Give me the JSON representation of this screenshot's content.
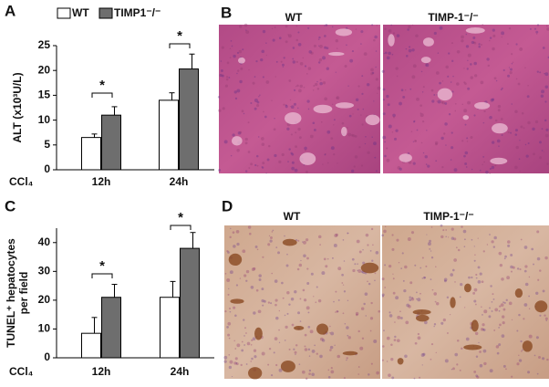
{
  "panels": {
    "a": "A",
    "b": "B",
    "c": "C",
    "d": "D"
  },
  "images": {
    "b_left": "WT",
    "b_right": "TIMP-1⁻/⁻",
    "d_left": "WT",
    "d_right": "TIMP-1⁻/⁻"
  },
  "chart_data": [
    {
      "type": "bar",
      "ylabel": [
        "ALT (x10³U/L)"
      ],
      "xlabel": "CCl₄",
      "categories": [
        "12h",
        "24h"
      ],
      "series": [
        {
          "name": "WT",
          "color": "#ffffff",
          "values": [
            6.5,
            14
          ],
          "errors": [
            0.7,
            1.5
          ]
        },
        {
          "name": "TIMP1⁻/⁻",
          "color": "#6e6e6e",
          "values": [
            11,
            20.3
          ],
          "errors": [
            1.7,
            3
          ]
        }
      ],
      "significance": [
        "*",
        "*"
      ],
      "ylim": [
        0,
        25
      ],
      "yticks": [
        0,
        5,
        10,
        15,
        20,
        25
      ]
    },
    {
      "type": "bar",
      "ylabel": [
        "TUNEL⁺ hepatocytes",
        "per field"
      ],
      "xlabel": "CCl₄",
      "categories": [
        "12h",
        "24h"
      ],
      "series": [
        {
          "name": "WT",
          "color": "#ffffff",
          "values": [
            8.5,
            21
          ],
          "errors": [
            5.5,
            5.5
          ]
        },
        {
          "name": "TIMP1⁻/⁻",
          "color": "#6e6e6e",
          "values": [
            21,
            38
          ],
          "errors": [
            4.5,
            5.5
          ]
        }
      ],
      "significance": [
        "*",
        "*"
      ],
      "ylim": [
        0,
        45
      ],
      "yticks": [
        0,
        10,
        20,
        30,
        40
      ]
    }
  ]
}
